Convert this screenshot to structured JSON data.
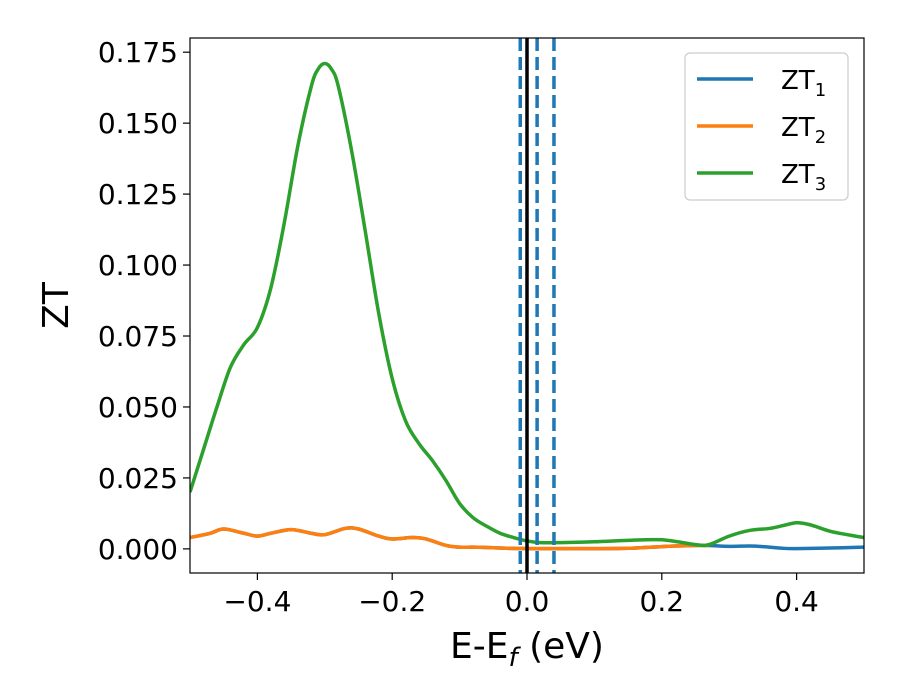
{
  "chart_data": {
    "type": "line",
    "xlabel_main": "E-E",
    "xlabel_sub": "f",
    "xlabel_tail": " (eV)",
    "ylabel": "ZT",
    "xlim": [
      -0.5,
      0.5
    ],
    "ylim": [
      -0.0085,
      0.18
    ],
    "xticks": [
      -0.4,
      -0.2,
      0.0,
      0.2,
      0.4
    ],
    "xtick_labels": [
      "−0.4",
      "−0.2",
      "0.0",
      "0.2",
      "0.4"
    ],
    "yticks": [
      0.0,
      0.025,
      0.05,
      0.075,
      0.1,
      0.125,
      0.15,
      0.175
    ],
    "ytick_labels": [
      "0.000",
      "0.025",
      "0.050",
      "0.075",
      "0.100",
      "0.125",
      "0.150",
      "0.175"
    ],
    "grid": false,
    "legend_position": "top-right",
    "series": [
      {
        "name_main": "ZT",
        "name_sub": "1",
        "color": "#1f77b4",
        "x": [
          -0.5,
          -0.47,
          -0.45,
          -0.42,
          -0.4,
          -0.38,
          -0.35,
          -0.32,
          -0.3,
          -0.27,
          -0.25,
          -0.22,
          -0.2,
          -0.17,
          -0.15,
          -0.12,
          -0.1,
          -0.08,
          -0.05,
          -0.03,
          0.0,
          0.03,
          0.05,
          0.1,
          0.15,
          0.2,
          0.22,
          0.25,
          0.27,
          0.3,
          0.33,
          0.35,
          0.38,
          0.4,
          0.45,
          0.5
        ],
        "y": [
          0.004,
          0.0055,
          0.007,
          0.0055,
          0.0045,
          0.0055,
          0.0068,
          0.0055,
          0.005,
          0.0072,
          0.007,
          0.0045,
          0.0035,
          0.004,
          0.0035,
          0.0012,
          0.0006,
          0.0006,
          0.0004,
          0.0002,
          0.0001,
          0.0001,
          0.0001,
          0.0001,
          0.0002,
          0.0008,
          0.001,
          0.0012,
          0.0012,
          0.0009,
          0.001,
          0.0008,
          0.0002,
          0.0001,
          0.0003,
          0.0006
        ]
      },
      {
        "name_main": "ZT",
        "name_sub": "2",
        "color": "#ff7f0e",
        "x": [
          -0.5,
          -0.47,
          -0.45,
          -0.42,
          -0.4,
          -0.38,
          -0.35,
          -0.32,
          -0.3,
          -0.27,
          -0.25,
          -0.22,
          -0.2,
          -0.17,
          -0.15,
          -0.12,
          -0.1,
          -0.08,
          -0.05,
          -0.03,
          0.0,
          0.03,
          0.05,
          0.1,
          0.15,
          0.2,
          0.22,
          0.25,
          0.27
        ],
        "y": [
          0.004,
          0.0055,
          0.007,
          0.0055,
          0.0045,
          0.0055,
          0.0068,
          0.0055,
          0.005,
          0.0072,
          0.007,
          0.0045,
          0.0035,
          0.004,
          0.0035,
          0.0012,
          0.0006,
          0.0006,
          0.0004,
          0.0002,
          0.0001,
          0.0001,
          0.0001,
          0.0001,
          0.0002,
          0.0008,
          0.001,
          0.0012,
          0.0012
        ]
      },
      {
        "name_main": "ZT",
        "name_sub": "3",
        "color": "#2ca02c",
        "x": [
          -0.5,
          -0.48,
          -0.46,
          -0.44,
          -0.42,
          -0.4,
          -0.38,
          -0.36,
          -0.34,
          -0.32,
          -0.31,
          -0.3,
          -0.29,
          -0.28,
          -0.26,
          -0.24,
          -0.22,
          -0.2,
          -0.18,
          -0.16,
          -0.14,
          -0.12,
          -0.1,
          -0.08,
          -0.06,
          -0.04,
          -0.02,
          0.0,
          0.02,
          0.05,
          0.1,
          0.15,
          0.2,
          0.25,
          0.27,
          0.3,
          0.33,
          0.36,
          0.38,
          0.4,
          0.42,
          0.45,
          0.48,
          0.5
        ],
        "y": [
          0.02,
          0.035,
          0.05,
          0.064,
          0.072,
          0.078,
          0.092,
          0.115,
          0.142,
          0.163,
          0.169,
          0.171,
          0.169,
          0.163,
          0.14,
          0.112,
          0.083,
          0.06,
          0.045,
          0.037,
          0.031,
          0.024,
          0.016,
          0.011,
          0.008,
          0.0055,
          0.004,
          0.0028,
          0.0022,
          0.0022,
          0.0025,
          0.003,
          0.0032,
          0.0015,
          0.0015,
          0.0045,
          0.0065,
          0.0072,
          0.0082,
          0.0092,
          0.0085,
          0.0062,
          0.0048,
          0.004
        ]
      }
    ],
    "vertical_lines": [
      {
        "x": 0.0,
        "style": "solid",
        "color": "#000000"
      },
      {
        "x": -0.01,
        "style": "dashed",
        "color": "#1f77b4"
      },
      {
        "x": 0.015,
        "style": "dashed",
        "color": "#1f77b4"
      },
      {
        "x": 0.04,
        "style": "dashed",
        "color": "#1f77b4"
      }
    ]
  }
}
